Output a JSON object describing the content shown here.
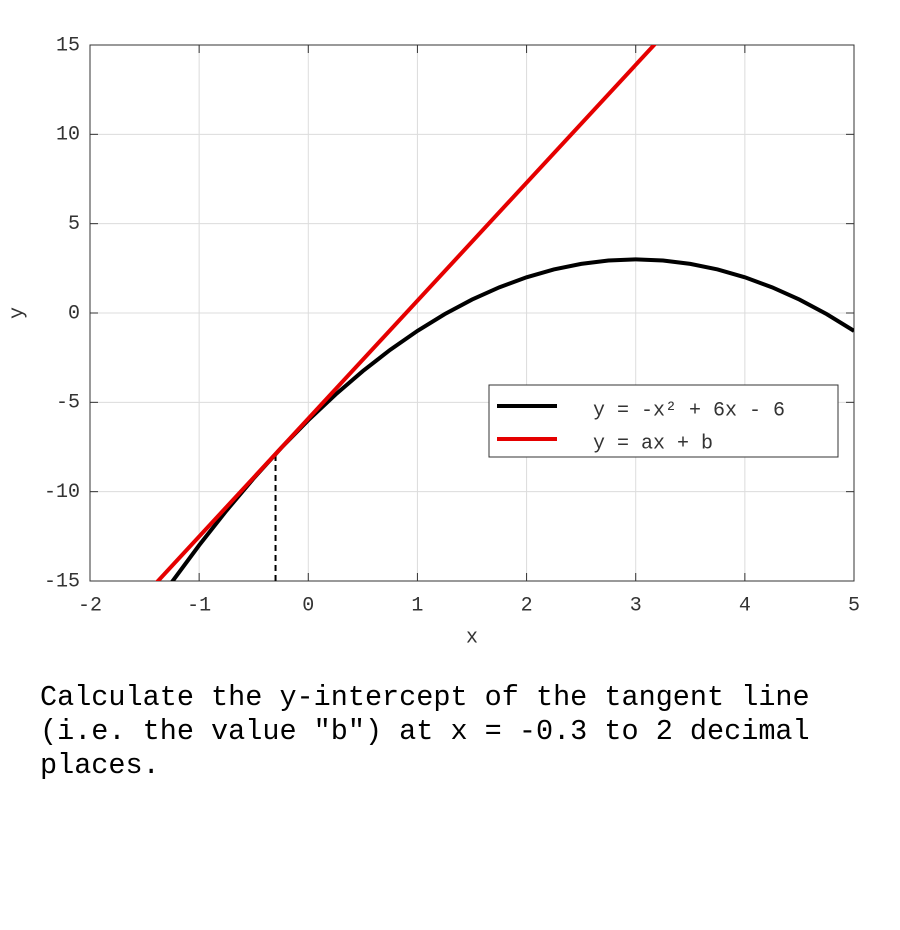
{
  "chart_data": {
    "type": "line",
    "xlabel": "x",
    "ylabel": "y",
    "xlim": [
      -2,
      5
    ],
    "ylim": [
      -15,
      15
    ],
    "xticks": [
      -2,
      -1,
      0,
      1,
      2,
      3,
      4,
      5
    ],
    "yticks": [
      -15,
      -10,
      -5,
      0,
      5,
      10,
      15
    ],
    "grid": true,
    "legend": "lower right",
    "series": [
      {
        "name": "y = -x² + 6x - 6",
        "color": "#000000",
        "x": [
          -1.25,
          -1,
          -0.75,
          -0.5,
          -0.25,
          0,
          0.25,
          0.5,
          0.75,
          1,
          1.25,
          1.5,
          1.75,
          2,
          2.25,
          2.5,
          2.75,
          3,
          3.25,
          3.5,
          3.75,
          4,
          4.25,
          4.5,
          4.75,
          5
        ],
        "values": [
          -15.0625,
          -13,
          -11.0625,
          -9.25,
          -7.5625,
          -6,
          -4.5625,
          -3.25,
          -2.0625,
          -1,
          -0.0625,
          0.75,
          1.4375,
          2,
          2.4375,
          2.75,
          2.9375,
          3,
          2.9375,
          2.75,
          2.4375,
          2,
          1.4375,
          0.75,
          -0.0625,
          -1
        ]
      },
      {
        "name": "y = ax + b",
        "color": "#e50000",
        "x": [
          -1.4,
          3.2
        ],
        "values": [
          -15.15,
          15.21
        ]
      }
    ],
    "marker": {
      "x": -0.3,
      "y": -7.89
    }
  },
  "question": "Calculate the y-intercept of the tangent line (i.e. the value \"b\") at x = -0.3 to 2 decimal places."
}
